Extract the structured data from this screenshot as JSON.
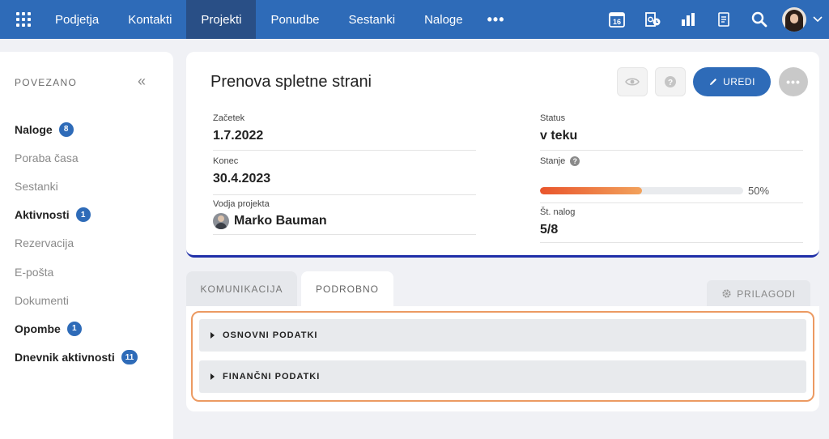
{
  "nav": {
    "items": [
      {
        "label": "Podjetja",
        "active": false
      },
      {
        "label": "Kontakti",
        "active": false
      },
      {
        "label": "Projekti",
        "active": true
      },
      {
        "label": "Ponudbe",
        "active": false
      },
      {
        "label": "Sestanki",
        "active": false
      },
      {
        "label": "Naloge",
        "active": false
      }
    ],
    "more": "•••",
    "calendar_day": "16",
    "icons": [
      "apps-grid-icon",
      "calendar-icon",
      "outlook-icon",
      "chart-icon",
      "document-icon",
      "search-icon",
      "user-avatar",
      "chevron-down-icon"
    ]
  },
  "sidebar": {
    "header": "POVEZANO",
    "collapse": "«",
    "items": [
      {
        "label": "Naloge",
        "bold": true,
        "badge": "8"
      },
      {
        "label": "Poraba časa",
        "bold": false,
        "badge": null
      },
      {
        "label": "Sestanki",
        "bold": false,
        "badge": null
      },
      {
        "label": "Aktivnosti",
        "bold": true,
        "badge": "1"
      },
      {
        "label": "Rezervacija",
        "bold": false,
        "badge": null
      },
      {
        "label": "E-pošta",
        "bold": false,
        "badge": null
      },
      {
        "label": "Dokumenti",
        "bold": false,
        "badge": null
      },
      {
        "label": "Opombe",
        "bold": true,
        "badge": "1"
      },
      {
        "label": "Dnevnik aktivnosti",
        "bold": true,
        "badge": "11"
      }
    ]
  },
  "project": {
    "title": "Prenova spletne strani",
    "edit_label": "UREDI",
    "more_label": "•••",
    "start_label": "Začetek",
    "start_value": "1.7.2022",
    "end_label": "Konec",
    "end_value": "30.4.2023",
    "lead_label": "Vodja projekta",
    "lead_value": "Marko Bauman",
    "status_label": "Status",
    "status_value": "v teku",
    "state_label": "Stanje",
    "help": "?",
    "progress_percent": 50,
    "progress_text": "50%",
    "tasks_label": "Št. nalog",
    "tasks_value": "5/8"
  },
  "tabs": {
    "communication": "KOMUNIKACIJA",
    "detail": "PODROBNO",
    "customize": "PRILAGODI"
  },
  "sections": {
    "basic": "OSNOVNI PODATKI",
    "financial": "FINANČNI PODATKI"
  },
  "colors": {
    "nav_bg": "#2e6bb8",
    "nav_active": "#294f86",
    "accent": "#2e6bb8",
    "progress_start": "#e9552c",
    "progress_end": "#f2a25c",
    "highlight": "#ec9a62"
  }
}
